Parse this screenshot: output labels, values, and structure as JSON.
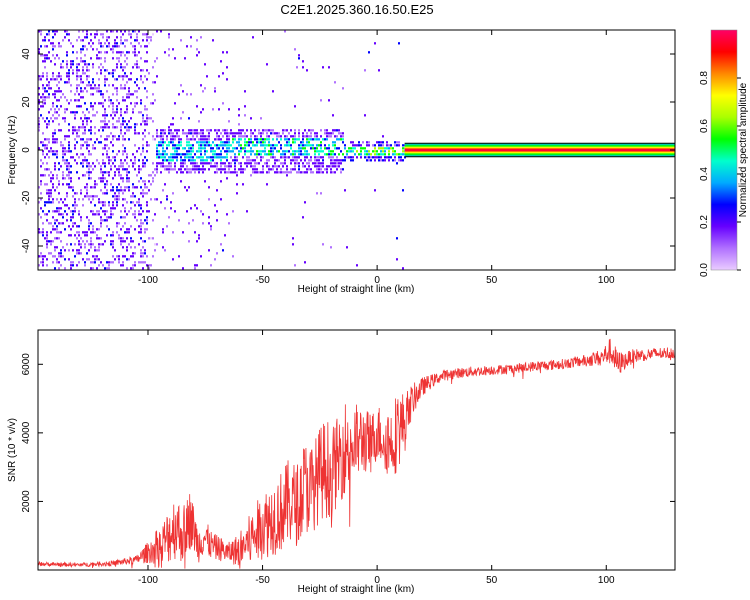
{
  "chart_data": [
    {
      "type": "heatmap",
      "title": "C2E1.2025.360.16.50.E25",
      "xlabel": "Height of straight line (km)",
      "ylabel": "Frequency (Hz)",
      "xlim": [
        -148,
        130
      ],
      "ylim": [
        -50,
        50
      ],
      "xticks": [
        -100,
        -50,
        0,
        50,
        100
      ],
      "yticks": [
        -40,
        -20,
        0,
        20,
        40
      ],
      "tone_band": {
        "x_start": 12,
        "x_end": 130,
        "freq_center": 0,
        "freq_halfwidth": 2
      },
      "colorbar": {
        "label": "Normalized spectral amplitude",
        "range": [
          0,
          1
        ],
        "ticks": [
          0.0,
          0.2,
          0.4,
          0.6,
          0.8
        ],
        "colors": [
          "#eaccff",
          "#b070ff",
          "#6600ff",
          "#0000ff",
          "#00aaff",
          "#00ffcc",
          "#00ff00",
          "#aaff00",
          "#ffff00",
          "#ff8800",
          "#ff0000",
          "#ff0066"
        ]
      }
    },
    {
      "type": "line",
      "xlabel": "Height of straight line (km)",
      "ylabel": "SNR (10 * v/v)",
      "xlim": [
        -148,
        130
      ],
      "ylim": [
        0,
        7000
      ],
      "xticks": [
        -100,
        -50,
        0,
        50,
        100
      ],
      "yticks": [
        2000,
        4000,
        6000
      ],
      "series": [
        {
          "name": "SNR",
          "color": "#ee3333",
          "x": [
            -148,
            -130,
            -115,
            -105,
            -98,
            -93,
            -88,
            -85,
            -82,
            -80,
            -78,
            -76,
            -72,
            -68,
            -65,
            -60,
            -55,
            -50,
            -46,
            -42,
            -38,
            -35,
            -32,
            -28,
            -25,
            -22,
            -20,
            -17,
            -14,
            -10,
            -6,
            -3,
            0,
            3,
            6,
            9,
            12,
            15,
            18,
            21,
            25,
            30,
            40,
            50,
            60,
            70,
            80,
            90,
            98,
            102,
            105,
            108,
            112,
            120,
            130
          ],
          "y": [
            180,
            150,
            200,
            300,
            600,
            800,
            1300,
            1000,
            1500,
            1200,
            700,
            1000,
            700,
            600,
            500,
            600,
            900,
            1300,
            1500,
            1700,
            2000,
            1900,
            2400,
            2400,
            2800,
            3000,
            2800,
            3200,
            3600,
            3700,
            3800,
            3700,
            4000,
            3900,
            3700,
            4100,
            4300,
            4900,
            5200,
            5400,
            5550,
            5700,
            5780,
            5830,
            5880,
            5950,
            6000,
            6100,
            6200,
            6400,
            6000,
            6100,
            6250,
            6300,
            6350
          ],
          "noise": [
            60,
            60,
            80,
            120,
            400,
            700,
            1000,
            800,
            900,
            700,
            500,
            600,
            400,
            350,
            300,
            500,
            800,
            1000,
            1100,
            1200,
            1300,
            1200,
            1400,
            1300,
            1400,
            1500,
            1300,
            1300,
            1400,
            1200,
            1000,
            900,
            800,
            1000,
            1100,
            1200,
            900,
            500,
            350,
            250,
            180,
            150,
            150,
            140,
            140,
            150,
            150,
            170,
            250,
            400,
            400,
            250,
            200,
            180,
            180
          ]
        }
      ]
    }
  ]
}
